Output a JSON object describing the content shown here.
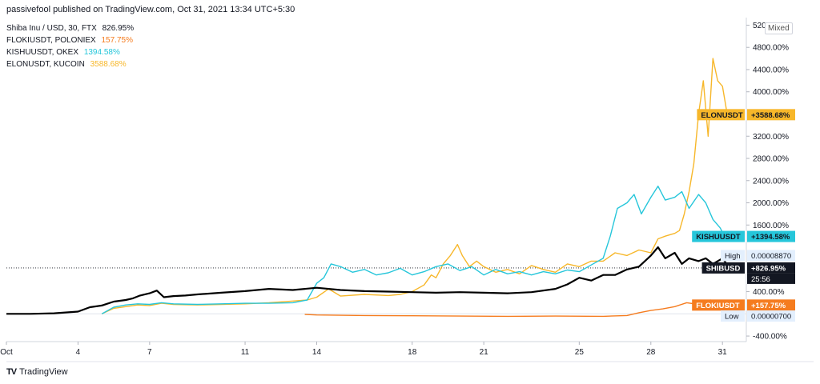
{
  "header": {
    "attribution": "passivefool published on TradingView.com, Oct 31, 2021 13:34 UTC+5:30"
  },
  "legend": [
    {
      "label": "Shiba Inu / USD, 30, FTX",
      "value": "826.95%",
      "color": "#131722"
    },
    {
      "label": "FLOKIUSDT, POLONIEX",
      "value": "157.75%",
      "color": "#f57c1f"
    },
    {
      "label": "KISHUUSDT, OKEX",
      "value": "1394.58%",
      "color": "#26c6da"
    },
    {
      "label": "ELONUSDT, KUCOIN",
      "value": "3588.68%",
      "color": "#f7b72a"
    }
  ],
  "scale_mode": "Mixed",
  "footer": {
    "brand": "TradingView"
  },
  "chart_data": {
    "type": "line",
    "ylim": [
      -500,
      5250
    ],
    "x_ticks": [
      "Oct",
      "4",
      "7",
      "11",
      "14",
      "18",
      "21",
      "25",
      "28",
      "31"
    ],
    "x_tick_days": [
      1,
      4,
      7,
      11,
      14,
      18,
      21,
      25,
      28,
      31
    ],
    "xlim_days": [
      1,
      32
    ],
    "y_ticks": [
      "5200.00%",
      "4800.00%",
      "4400.00%",
      "4000.00%",
      "3200.00%",
      "2800.00%",
      "2400.00%",
      "2000.00%",
      "1600.00%",
      "400.00%",
      "-400.00%"
    ],
    "y_tick_values": [
      5200,
      4800,
      4400,
      4000,
      3200,
      2800,
      2400,
      2000,
      1600,
      400,
      -400
    ],
    "series": [
      {
        "name": "ELONUSDT",
        "color": "#f7b72a",
        "x": [
          5,
          5.5,
          6,
          6.5,
          7,
          7.5,
          8,
          9,
          10,
          11,
          12,
          13,
          13.6,
          14,
          14.5,
          15,
          16,
          17,
          17.5,
          18,
          18.5,
          18.8,
          19,
          19.3,
          19.6,
          19.9,
          20.1,
          20.4,
          20.7,
          21,
          21.5,
          22,
          22.5,
          23,
          23.5,
          24,
          24.5,
          25,
          25.5,
          26,
          26.5,
          27,
          27.5,
          28,
          28.3,
          28.6,
          29,
          29.2,
          29.4,
          29.6,
          29.8,
          30,
          30.2,
          30.4,
          30.6,
          30.8,
          31,
          31.2
        ],
        "y": [
          0,
          100,
          130,
          160,
          150,
          190,
          170,
          160,
          170,
          180,
          200,
          230,
          250,
          300,
          450,
          320,
          350,
          330,
          350,
          400,
          520,
          700,
          650,
          900,
          1050,
          1250,
          1050,
          850,
          950,
          850,
          750,
          800,
          720,
          870,
          800,
          750,
          900,
          850,
          950,
          950,
          1100,
          1050,
          1150,
          1100,
          1350,
          1400,
          1450,
          1500,
          1800,
          2200,
          2700,
          3600,
          4200,
          3200,
          4600,
          4200,
          4100,
          3588
        ],
        "label": "ELONUSDT",
        "last_label": "+3588.68%"
      },
      {
        "name": "KISHUUSDT",
        "color": "#26c6da",
        "x": [
          5,
          5.5,
          6,
          6.5,
          7,
          7.5,
          8,
          9,
          10,
          11,
          12,
          13,
          13.6,
          14,
          14.3,
          14.6,
          15,
          15.5,
          16,
          16.5,
          17,
          17.5,
          18,
          18.5,
          19,
          19.5,
          20,
          20.5,
          21,
          21.5,
          22,
          22.5,
          23,
          23.5,
          24,
          24.5,
          25,
          25.5,
          26,
          26.3,
          26.6,
          27,
          27.3,
          27.6,
          28,
          28.3,
          28.6,
          29,
          29.3,
          29.6,
          30,
          30.3,
          30.6,
          30.9,
          31.1
        ],
        "y": [
          0,
          120,
          160,
          180,
          170,
          200,
          180,
          170,
          180,
          190,
          190,
          200,
          250,
          550,
          650,
          900,
          850,
          750,
          800,
          700,
          740,
          820,
          700,
          760,
          850,
          900,
          780,
          850,
          700,
          800,
          720,
          760,
          700,
          760,
          720,
          790,
          760,
          880,
          1000,
          1400,
          1900,
          2000,
          2150,
          1800,
          2100,
          2300,
          2050,
          2100,
          2200,
          1900,
          2150,
          2000,
          1700,
          1550,
          1394
        ],
        "label": "KISHUUSDT",
        "last_label": "+1394.58%"
      },
      {
        "name": "SHIBUSD",
        "color": "#000000",
        "x": [
          1,
          2,
          3,
          4,
          4.5,
          5,
          5.5,
          6,
          6.3,
          6.6,
          7,
          7.3,
          7.6,
          8,
          8.5,
          9,
          10,
          11,
          12,
          13,
          14,
          15,
          16,
          17,
          18,
          19,
          20,
          21,
          22,
          23,
          24,
          24.5,
          25,
          25.5,
          26,
          26.5,
          27,
          27.5,
          28,
          28.3,
          28.6,
          29,
          29.3,
          29.6,
          30,
          30.3,
          30.6,
          31,
          31.3
        ],
        "y": [
          0,
          0,
          10,
          40,
          120,
          150,
          220,
          250,
          280,
          330,
          370,
          420,
          300,
          320,
          330,
          350,
          380,
          410,
          450,
          430,
          470,
          430,
          410,
          400,
          390,
          380,
          390,
          380,
          370,
          390,
          450,
          530,
          650,
          600,
          700,
          700,
          800,
          850,
          1050,
          1200,
          1000,
          1100,
          900,
          1000,
          950,
          1000,
          900,
          1000,
          827
        ],
        "label": "SHIBUSD",
        "last_label": "+826.95%"
      },
      {
        "name": "FLOKIUSDT",
        "color": "#f57c1f",
        "x": [
          13.5,
          14,
          16,
          18,
          20,
          22,
          24,
          26,
          27,
          27.5,
          28,
          28.5,
          29,
          29.5,
          30,
          30.5,
          31,
          31.2
        ],
        "y": [
          -10,
          -20,
          -30,
          -35,
          -40,
          -45,
          -40,
          -45,
          -30,
          20,
          60,
          90,
          130,
          200,
          170,
          250,
          180,
          158
        ],
        "label": "FLOKIUSDT",
        "last_label": "+157.75%"
      }
    ],
    "annotations": [
      {
        "text": "High",
        "value": "0.00008870"
      },
      {
        "text": "Low",
        "value": "0.00000700"
      },
      {
        "text": "SHIBUSD countdown",
        "value": "25:56"
      }
    ],
    "grid": false,
    "legend_position": "top-left"
  }
}
